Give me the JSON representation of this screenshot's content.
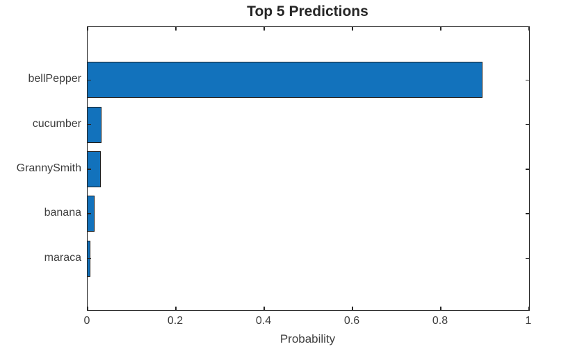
{
  "figure": {
    "background_color": "#ffffff"
  },
  "chart_data": {
    "type": "bar",
    "orientation": "horizontal",
    "title": "Top 5 Predictions",
    "xlabel": "Probability",
    "ylabel": "",
    "categories": [
      "bellPepper",
      "cucumber",
      "GrannySmith",
      "banana",
      "maraca"
    ],
    "values": [
      0.895,
      0.032,
      0.03,
      0.016,
      0.006
    ],
    "xlim": [
      0,
      1
    ],
    "xticks": [
      0,
      0.2,
      0.4,
      0.6,
      0.8,
      1
    ],
    "xtick_labels": [
      "0",
      "0.2",
      "0.4",
      "0.6",
      "0.8",
      "1"
    ],
    "grid": false,
    "legend": null,
    "box": true,
    "tick_direction": "in",
    "bar_color": "#1272bc",
    "bar_edge_color": "#1c1c1c",
    "axis_color": "#262626",
    "text_color": "#3d3d3d"
  }
}
